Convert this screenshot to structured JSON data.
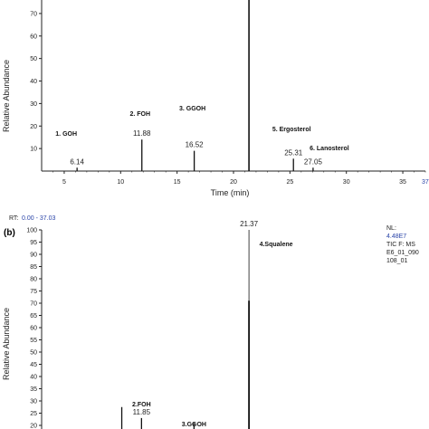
{
  "chart_data": [
    {
      "id": "a",
      "type": "line",
      "panel_label": "",
      "xlabel": "Time (min)",
      "ylabel": "Relative Abundance",
      "xlim": [
        3,
        37
      ],
      "ylim": [
        0,
        76
      ],
      "x_ticks": [
        "5",
        "10",
        "15",
        "20",
        "25",
        "30",
        "35"
      ],
      "x_tick_values": [
        5,
        10,
        15,
        20,
        25,
        30,
        35
      ],
      "x_end_label": "37",
      "x_end_value": 37,
      "y_ticks": [
        "10",
        "20",
        "30",
        "40",
        "50",
        "60",
        "70"
      ],
      "y_tick_values": [
        10,
        20,
        30,
        40,
        50,
        60,
        70
      ],
      "peaks": [
        {
          "rt": 6.14,
          "height": 1.5,
          "rt_label": "6.14",
          "annotation": "1. GOH"
        },
        {
          "rt": 11.88,
          "height": 14,
          "rt_label": "11.88",
          "annotation": "2. FOH"
        },
        {
          "rt": 16.52,
          "height": 9,
          "rt_label": "16.52",
          "annotation": "3. GGOH"
        },
        {
          "rt": 21.37,
          "height": 100,
          "rt_label": "",
          "annotation": ""
        },
        {
          "rt": 25.31,
          "height": 5.5,
          "rt_label": "25.31",
          "annotation": "5. Ergosterol"
        },
        {
          "rt": 27.05,
          "height": 1.5,
          "rt_label": "27.05",
          "annotation": "6. Lanosterol"
        }
      ]
    },
    {
      "id": "b",
      "type": "line",
      "panel_label": "(b)",
      "header_rt_label": "RT:",
      "header_rt_range": "0.00 - 37.03",
      "xlabel": "",
      "ylabel": "Relative Abundance",
      "xlim": [
        3,
        37
      ],
      "ylim": [
        20,
        100
      ],
      "y_ticks": [
        "20",
        "25",
        "30",
        "35",
        "40",
        "45",
        "50",
        "55",
        "60",
        "65",
        "70",
        "75",
        "80",
        "85",
        "90",
        "95",
        "100"
      ],
      "y_tick_values": [
        20,
        25,
        30,
        35,
        40,
        45,
        50,
        55,
        60,
        65,
        70,
        75,
        80,
        85,
        90,
        95,
        100
      ],
      "info_block": [
        "NL:",
        "4.48E7",
        "TIC F:  MS",
        "E6_01_090",
        "108_01"
      ],
      "peaks": [
        {
          "rt": 11.85,
          "height": 23,
          "rt_label": "11.85",
          "annotation": "2.FOH"
        },
        {
          "rt": 16.5,
          "height": 21,
          "rt_label": "",
          "annotation": "3.GGOH"
        },
        {
          "rt": 21.37,
          "height": 100,
          "rt_label": "21.37",
          "annotation": "4.Squalene"
        }
      ]
    }
  ]
}
